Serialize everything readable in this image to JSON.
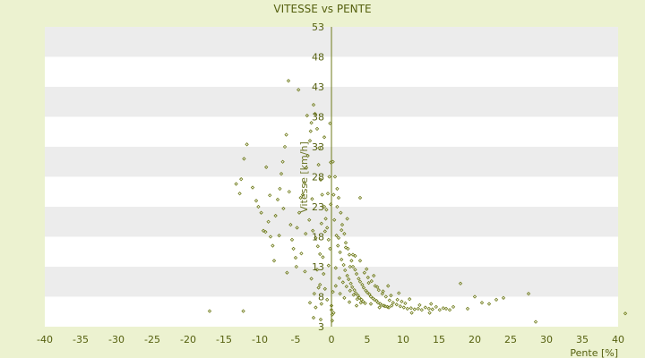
{
  "chart_data": {
    "type": "scatter",
    "title": "VITESSE vs PENTE",
    "xlabel": "Pente [%]",
    "ylabel": "Vitesse [km/h]",
    "xlim": [
      -40,
      40
    ],
    "ylim": [
      3,
      53
    ],
    "xticks": [
      "-40",
      "-35",
      "-30",
      "-25",
      "-20",
      "-15",
      "-10",
      "-5",
      "0",
      "5",
      "10",
      "15",
      "20",
      "25",
      "30",
      "35",
      "40"
    ],
    "yticks": [
      "3",
      "8",
      "13",
      "18",
      "23",
      "28",
      "33",
      "38",
      "43",
      "48",
      "53"
    ],
    "grid": "horizontal alternating bands",
    "colors": {
      "background": "#ecf2d0",
      "plot_band_light": "#ffffff",
      "plot_band_dark": "#ececec",
      "marker": "#6e7a18",
      "text": "#55600f"
    },
    "series": [
      {
        "points": [
          [
            -17.0,
            5.6
          ],
          [
            -12.3,
            5.6
          ],
          [
            -13.3,
            26.8
          ],
          [
            -12.8,
            25.2
          ],
          [
            -12.6,
            27.6
          ],
          [
            -12.2,
            31.0
          ],
          [
            -11.8,
            33.4
          ],
          [
            -11.0,
            26.2
          ],
          [
            -10.5,
            24.0
          ],
          [
            -10.2,
            23.0
          ],
          [
            -9.8,
            22.0
          ],
          [
            -9.5,
            19.0
          ],
          [
            -9.2,
            18.8
          ],
          [
            -8.8,
            20.5
          ],
          [
            -8.5,
            18.0
          ],
          [
            -8.2,
            16.5
          ],
          [
            -8.0,
            14.0
          ],
          [
            -7.8,
            21.5
          ],
          [
            -7.5,
            24.2
          ],
          [
            -7.2,
            26.0
          ],
          [
            -7.0,
            28.5
          ],
          [
            -6.8,
            30.5
          ],
          [
            -6.5,
            33.0
          ],
          [
            -6.3,
            35.0
          ],
          [
            -6.0,
            44.0
          ],
          [
            -5.7,
            20.0
          ],
          [
            -5.5,
            17.5
          ],
          [
            -5.3,
            16.0
          ],
          [
            -5.0,
            14.5
          ],
          [
            -4.8,
            19.5
          ],
          [
            -4.5,
            22.0
          ],
          [
            -4.3,
            24.5
          ],
          [
            -4.0,
            25.0
          ],
          [
            -3.8,
            27.0
          ],
          [
            -3.5,
            29.5
          ],
          [
            -3.3,
            31.5
          ],
          [
            -3.0,
            34.0
          ],
          [
            -2.8,
            37.0
          ],
          [
            -2.5,
            40.0
          ],
          [
            -2.3,
            38.5
          ],
          [
            -2.0,
            36.0
          ],
          [
            -1.8,
            30.0
          ],
          [
            -1.5,
            27.5
          ],
          [
            -1.3,
            25.0
          ],
          [
            -1.0,
            23.0
          ],
          [
            -0.8,
            21.0
          ],
          [
            -0.6,
            19.5
          ],
          [
            -0.4,
            17.5
          ],
          [
            -0.2,
            16.0
          ],
          [
            -4.2,
            15.2
          ],
          [
            -3.6,
            18.5
          ],
          [
            -3.1,
            20.8
          ],
          [
            -2.6,
            19.0
          ],
          [
            -2.2,
            17.8
          ],
          [
            -1.9,
            16.4
          ],
          [
            -1.6,
            15.1
          ],
          [
            -1.2,
            14.6
          ],
          [
            -0.9,
            18.9
          ],
          [
            -0.7,
            22.5
          ],
          [
            -0.5,
            25.2
          ],
          [
            -0.3,
            28.0
          ],
          [
            -0.1,
            30.4
          ],
          [
            -2.7,
            24.3
          ],
          [
            -1.4,
            20.2
          ],
          [
            -5.9,
            25.5
          ],
          [
            -6.7,
            22.7
          ],
          [
            -7.3,
            18.2
          ],
          [
            -8.6,
            24.9
          ],
          [
            -9.1,
            29.6
          ],
          [
            -2.0,
            12.5
          ],
          [
            -1.1,
            11.8
          ],
          [
            -0.4,
            13.2
          ],
          [
            -2.4,
            8.5
          ],
          [
            -1.6,
            10.0
          ],
          [
            -0.9,
            9.3
          ],
          [
            -3.0,
            7.0
          ],
          [
            -2.2,
            6.2
          ],
          [
            -1.4,
            6.8
          ],
          [
            -0.6,
            7.5
          ],
          [
            0.1,
            5.0
          ],
          [
            0.0,
            5.8
          ],
          [
            0.3,
            5.3
          ],
          [
            -4.6,
            42.5
          ],
          [
            -3.4,
            38.2
          ],
          [
            -2.9,
            35.6
          ],
          [
            -1.7,
            32.8
          ],
          [
            -1.0,
            34.6
          ],
          [
            -0.2,
            36.9
          ],
          [
            0.2,
            30.5
          ],
          [
            0.5,
            28.0
          ],
          [
            0.8,
            26.0
          ],
          [
            1.0,
            24.5
          ],
          [
            1.3,
            22.0
          ],
          [
            1.5,
            20.0
          ],
          [
            1.8,
            18.5
          ],
          [
            2.0,
            17.0
          ],
          [
            2.3,
            16.0
          ],
          [
            2.5,
            15.0
          ],
          [
            2.8,
            14.0
          ],
          [
            3.0,
            13.0
          ],
          [
            3.3,
            12.5
          ],
          [
            3.5,
            11.8
          ],
          [
            3.8,
            11.0
          ],
          [
            4.0,
            10.5
          ],
          [
            4.3,
            10.0
          ],
          [
            4.5,
            9.5
          ],
          [
            4.8,
            9.0
          ],
          [
            5.0,
            8.7
          ],
          [
            5.3,
            8.4
          ],
          [
            5.5,
            8.0
          ],
          [
            5.8,
            7.7
          ],
          [
            6.0,
            7.5
          ],
          [
            6.3,
            7.3
          ],
          [
            6.5,
            7.0
          ],
          [
            6.8,
            6.8
          ],
          [
            7.0,
            6.6
          ],
          [
            7.3,
            6.5
          ],
          [
            7.5,
            6.4
          ],
          [
            7.8,
            6.3
          ],
          [
            8.0,
            6.2
          ],
          [
            0.4,
            20.8
          ],
          [
            0.7,
            18.2
          ],
          [
            0.9,
            16.5
          ],
          [
            1.2,
            15.4
          ],
          [
            1.4,
            14.2
          ],
          [
            1.7,
            13.3
          ],
          [
            1.9,
            12.4
          ],
          [
            2.2,
            11.5
          ],
          [
            2.4,
            10.9
          ],
          [
            2.7,
            10.2
          ],
          [
            2.9,
            9.6
          ],
          [
            3.2,
            9.1
          ],
          [
            3.4,
            8.6
          ],
          [
            3.7,
            8.2
          ],
          [
            3.9,
            7.8
          ],
          [
            4.2,
            7.5
          ],
          [
            4.4,
            7.2
          ],
          [
            4.7,
            6.9
          ],
          [
            0.6,
            12.8
          ],
          [
            1.1,
            11.1
          ],
          [
            1.6,
            10.4
          ],
          [
            2.1,
            9.7
          ],
          [
            2.6,
            9.0
          ],
          [
            3.1,
            8.3
          ],
          [
            3.6,
            7.6
          ],
          [
            4.1,
            7.0
          ],
          [
            4.6,
            12.0
          ],
          [
            5.1,
            11.2
          ],
          [
            5.6,
            10.6
          ],
          [
            6.1,
            9.8
          ],
          [
            6.6,
            9.1
          ],
          [
            7.1,
            8.5
          ],
          [
            7.6,
            8.0
          ],
          [
            8.1,
            7.4
          ],
          [
            8.6,
            7.0
          ],
          [
            9.1,
            6.7
          ],
          [
            9.6,
            6.4
          ],
          [
            10.1,
            6.2
          ],
          [
            10.6,
            6.0
          ],
          [
            11.1,
            6.1
          ],
          [
            11.6,
            5.9
          ],
          [
            12.1,
            6.0
          ],
          [
            12.6,
            5.8
          ],
          [
            13.1,
            6.2
          ],
          [
            13.6,
            6.0
          ],
          [
            14.1,
            5.9
          ],
          [
            14.6,
            6.3
          ],
          [
            15.1,
            5.8
          ],
          [
            15.6,
            6.1
          ],
          [
            16.0,
            6.0
          ],
          [
            17.0,
            6.3
          ],
          [
            18.0,
            10.2
          ],
          [
            19.0,
            6.0
          ],
          [
            20.0,
            8.0
          ],
          [
            21.0,
            7.0
          ],
          [
            22.0,
            6.8
          ],
          [
            23.0,
            7.5
          ],
          [
            24.0,
            7.8
          ],
          [
            27.5,
            8.5
          ],
          [
            28.5,
            3.8
          ],
          [
            11.2,
            5.3
          ],
          [
            13.7,
            5.3
          ],
          [
            1.0,
            17.8
          ],
          [
            2.0,
            16.2
          ],
          [
            3.0,
            15.0
          ],
          [
            4.0,
            14.0
          ],
          [
            4.0,
            24.5
          ],
          [
            2.2,
            21.0
          ],
          [
            0.3,
            25.0
          ],
          [
            0.8,
            23.0
          ],
          [
            1.4,
            19.1
          ],
          [
            -0.1,
            23.4
          ],
          [
            6.4,
            9.6
          ],
          [
            7.2,
            8.9
          ],
          [
            8.3,
            8.2
          ],
          [
            9.2,
            7.5
          ],
          [
            10.3,
            6.9
          ],
          [
            5.2,
            10.3
          ],
          [
            5.9,
            11.5
          ],
          [
            4.9,
            12.6
          ],
          [
            3.3,
            14.8
          ],
          [
            2.6,
            13.0
          ],
          [
            -2.5,
            4.5
          ],
          [
            -1.5,
            4.2
          ],
          [
            0.1,
            4.0
          ],
          [
            0.0,
            6.5
          ],
          [
            41.0,
            5.2
          ],
          [
            -6.2,
            12.0
          ],
          [
            -4.9,
            13.0
          ],
          [
            -3.7,
            12.2
          ],
          [
            -2.8,
            11.0
          ],
          [
            -1.8,
            9.5
          ],
          [
            0.2,
            8.8
          ],
          [
            0.6,
            9.8
          ],
          [
            1.2,
            8.5
          ],
          [
            1.8,
            7.8
          ],
          [
            2.5,
            7.1
          ],
          [
            3.5,
            6.5
          ],
          [
            5.5,
            6.8
          ],
          [
            6.7,
            6.2
          ],
          [
            8.4,
            6.5
          ],
          [
            9.8,
            7.2
          ],
          [
            10.9,
            7.6
          ],
          [
            12.3,
            6.6
          ],
          [
            13.9,
            6.8
          ],
          [
            16.5,
            5.8
          ],
          [
            7.9,
            9.8
          ],
          [
            9.4,
            8.6
          ]
        ]
      }
    ]
  }
}
